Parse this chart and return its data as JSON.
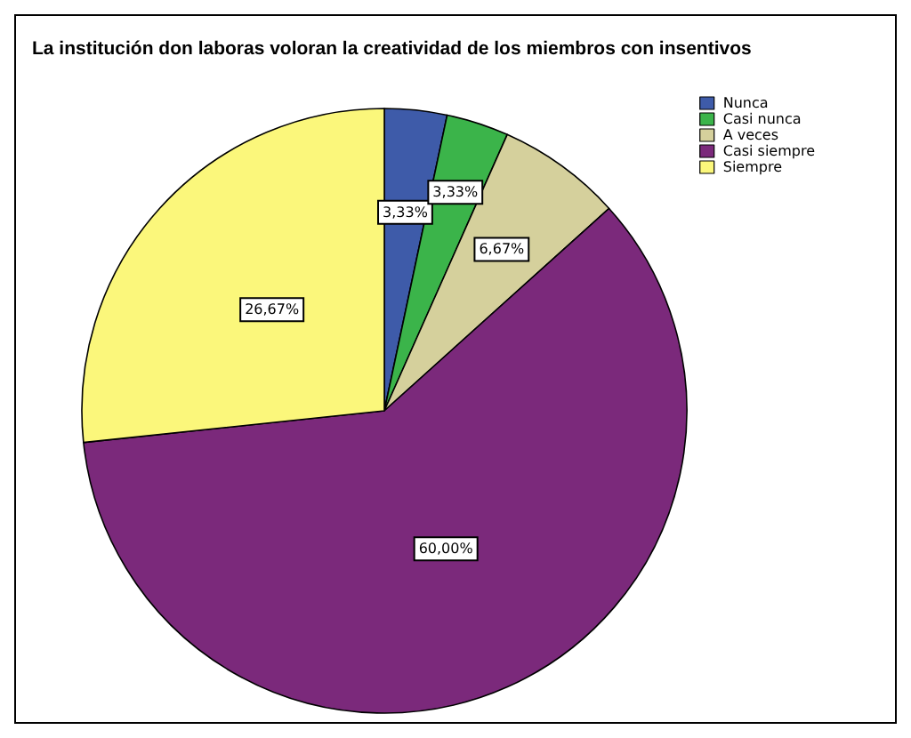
{
  "chart_data": {
    "type": "pie",
    "title": "La institución don laboras voloran la creatividad de los miembros con insentivos",
    "categories": [
      "Nunca",
      "Casi nunca",
      "A veces",
      "Casi siempre",
      "Siempre"
    ],
    "values": [
      3.33,
      3.33,
      6.67,
      60.0,
      26.67
    ],
    "value_labels": [
      "3,33%",
      "3,33%",
      "6,67%",
      "60,00%",
      "26,67%"
    ],
    "colors": [
      "#3e5ba9",
      "#3bb44a",
      "#d5d09c",
      "#7b297b",
      "#fbf77b"
    ],
    "legend": "top right"
  }
}
